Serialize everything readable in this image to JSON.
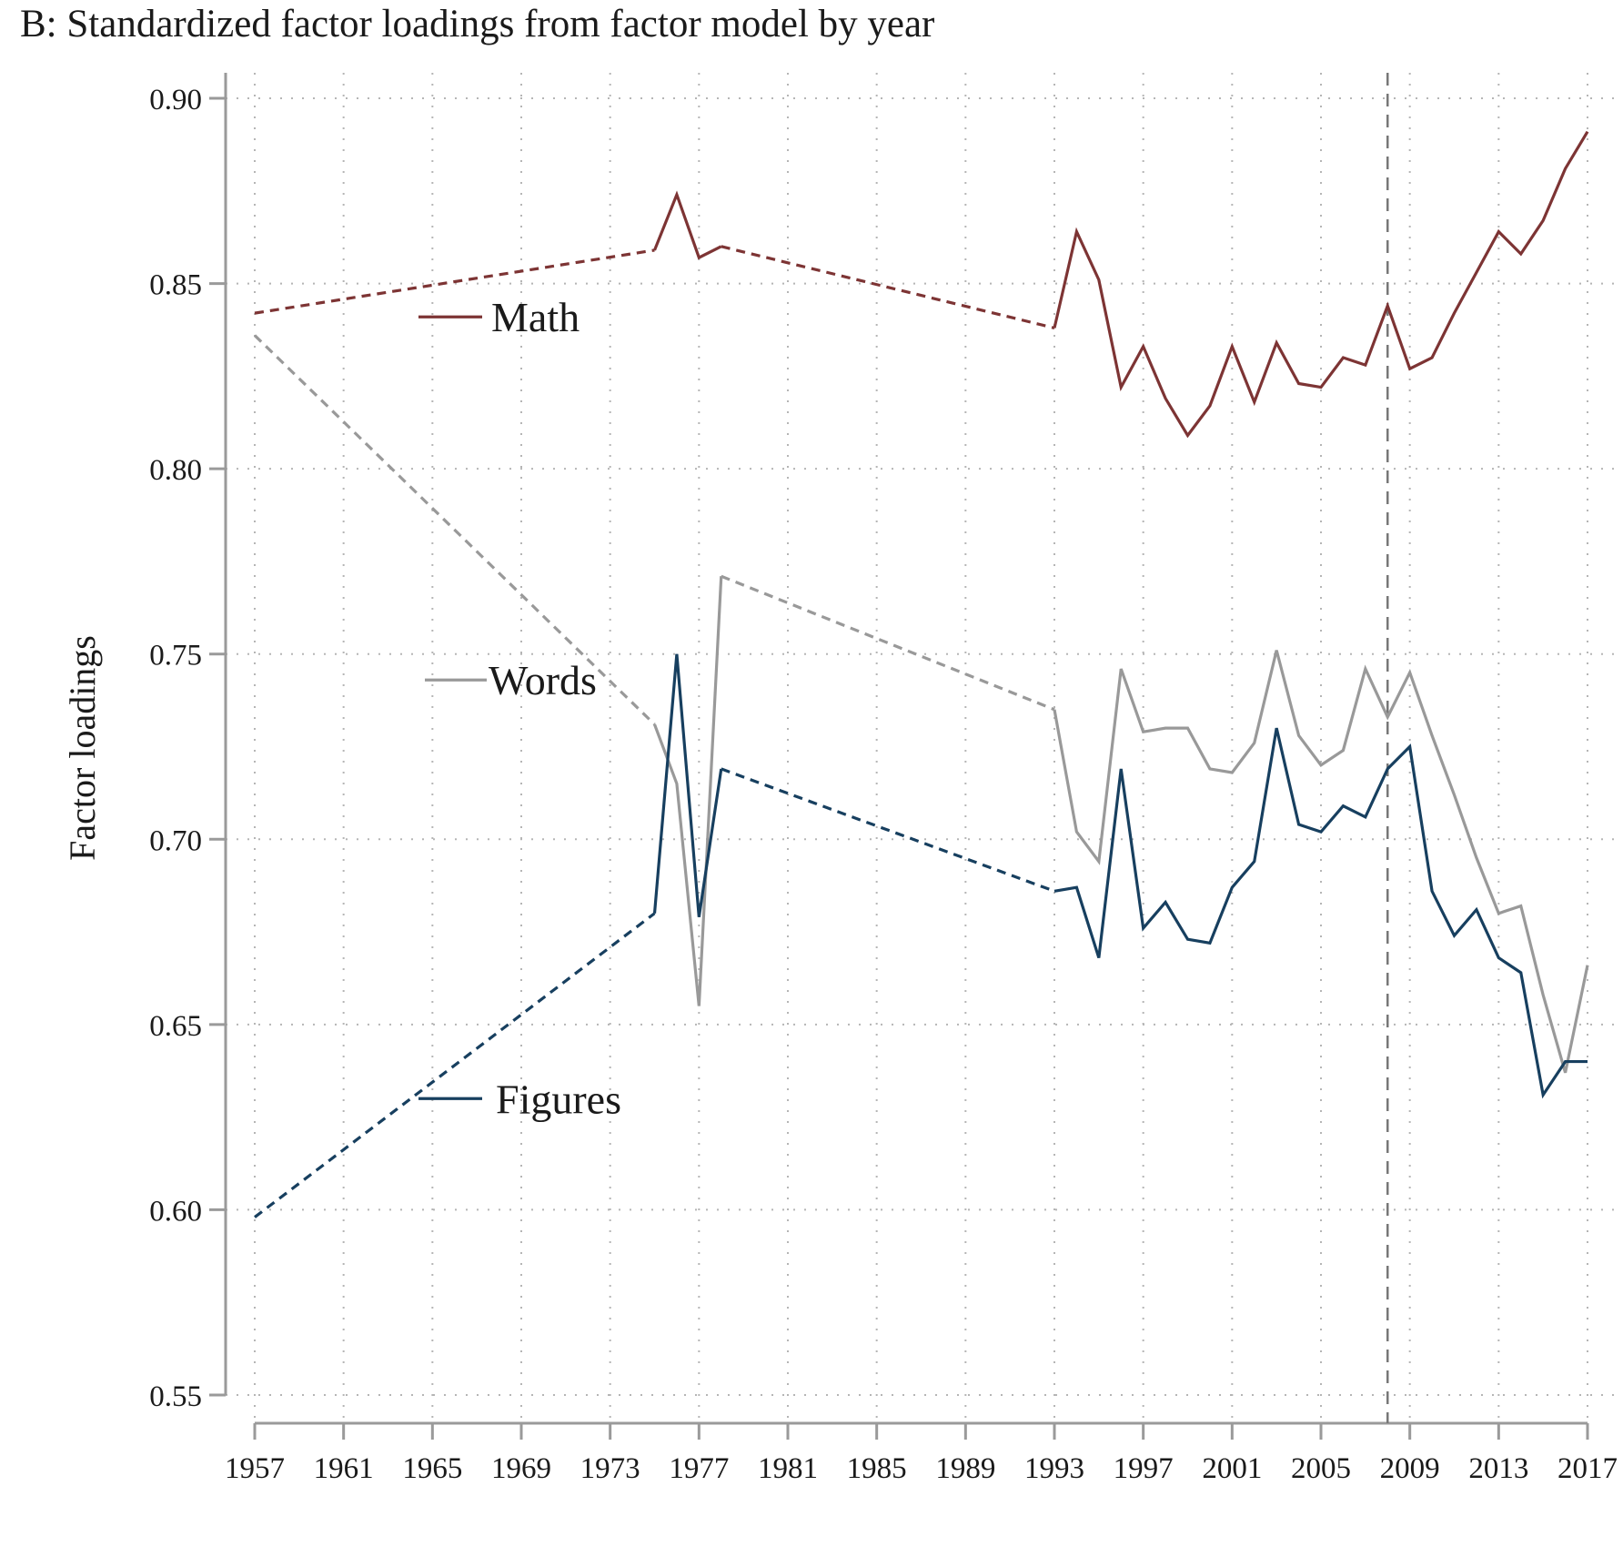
{
  "chart_data": {
    "type": "line",
    "title": "B: Standardized factor loadings from factor model by year",
    "xlabel": "",
    "ylabel": "Factor loadings",
    "xlim": [
      1957,
      2017
    ],
    "ylim": [
      0.55,
      0.9
    ],
    "xticks": [
      "1957",
      "1961",
      "1965",
      "1969",
      "1973",
      "1977",
      "1981",
      "1985",
      "1989",
      "1993",
      "1997",
      "2001",
      "2005",
      "2009",
      "2013",
      "2017"
    ],
    "yticks": [
      "0.55",
      "0.60",
      "0.65",
      "0.70",
      "0.75",
      "0.80",
      "0.85",
      "0.90"
    ],
    "grid": true,
    "legend": "inline-left",
    "reference_line_x": 2008,
    "series": [
      {
        "name": "Math",
        "color": "#7d3434",
        "dashed_segments": [
          [
            1957,
            1975
          ],
          [
            1978,
            1993
          ]
        ],
        "points": [
          [
            1957,
            0.842
          ],
          [
            1975,
            0.859
          ],
          [
            1976,
            0.874
          ],
          [
            1977,
            0.857
          ],
          [
            1978,
            0.86
          ],
          [
            1993,
            0.838
          ],
          [
            1994,
            0.864
          ],
          [
            1995,
            0.851
          ],
          [
            1996,
            0.822
          ],
          [
            1997,
            0.833
          ],
          [
            1998,
            0.819
          ],
          [
            1999,
            0.809
          ],
          [
            2000,
            0.817
          ],
          [
            2001,
            0.833
          ],
          [
            2002,
            0.818
          ],
          [
            2003,
            0.834
          ],
          [
            2004,
            0.823
          ],
          [
            2005,
            0.822
          ],
          [
            2006,
            0.83
          ],
          [
            2007,
            0.828
          ],
          [
            2008,
            0.844
          ],
          [
            2009,
            0.827
          ],
          [
            2010,
            0.83
          ],
          [
            2011,
            0.842
          ],
          [
            2012,
            0.853
          ],
          [
            2013,
            0.864
          ],
          [
            2014,
            0.858
          ],
          [
            2015,
            0.867
          ],
          [
            2016,
            0.881
          ],
          [
            2017,
            0.891
          ]
        ]
      },
      {
        "name": "Words",
        "color": "#999999",
        "dashed_segments": [
          [
            1957,
            1975
          ],
          [
            1978,
            1993
          ]
        ],
        "points": [
          [
            1957,
            0.836
          ],
          [
            1975,
            0.731
          ],
          [
            1976,
            0.715
          ],
          [
            1977,
            0.655
          ],
          [
            1978,
            0.771
          ],
          [
            1993,
            0.735
          ],
          [
            1994,
            0.702
          ],
          [
            1995,
            0.694
          ],
          [
            1996,
            0.746
          ],
          [
            1997,
            0.729
          ],
          [
            1998,
            0.73
          ],
          [
            1999,
            0.73
          ],
          [
            2000,
            0.719
          ],
          [
            2001,
            0.718
          ],
          [
            2002,
            0.726
          ],
          [
            2003,
            0.751
          ],
          [
            2004,
            0.728
          ],
          [
            2005,
            0.72
          ],
          [
            2006,
            0.724
          ],
          [
            2007,
            0.746
          ],
          [
            2008,
            0.733
          ],
          [
            2009,
            0.745
          ],
          [
            2010,
            0.728
          ],
          [
            2011,
            0.712
          ],
          [
            2012,
            0.695
          ],
          [
            2013,
            0.68
          ],
          [
            2014,
            0.682
          ],
          [
            2015,
            0.658
          ],
          [
            2016,
            0.637
          ],
          [
            2017,
            0.666
          ]
        ]
      },
      {
        "name": "Figures",
        "color": "#173f5f",
        "dashed_segments": [
          [
            1957,
            1975
          ],
          [
            1978,
            1993
          ]
        ],
        "points": [
          [
            1957,
            0.598
          ],
          [
            1975,
            0.68
          ],
          [
            1976,
            0.75
          ],
          [
            1977,
            0.679
          ],
          [
            1978,
            0.719
          ],
          [
            1993,
            0.686
          ],
          [
            1994,
            0.687
          ],
          [
            1995,
            0.668
          ],
          [
            1996,
            0.719
          ],
          [
            1997,
            0.676
          ],
          [
            1998,
            0.683
          ],
          [
            1999,
            0.673
          ],
          [
            2000,
            0.672
          ],
          [
            2001,
            0.687
          ],
          [
            2002,
            0.694
          ],
          [
            2003,
            0.73
          ],
          [
            2004,
            0.704
          ],
          [
            2005,
            0.702
          ],
          [
            2006,
            0.709
          ],
          [
            2007,
            0.706
          ],
          [
            2008,
            0.719
          ],
          [
            2009,
            0.725
          ],
          [
            2010,
            0.686
          ],
          [
            2011,
            0.674
          ],
          [
            2012,
            0.681
          ],
          [
            2013,
            0.668
          ],
          [
            2014,
            0.664
          ],
          [
            2015,
            0.631
          ],
          [
            2016,
            0.64
          ],
          [
            2017,
            0.64
          ]
        ]
      }
    ]
  }
}
